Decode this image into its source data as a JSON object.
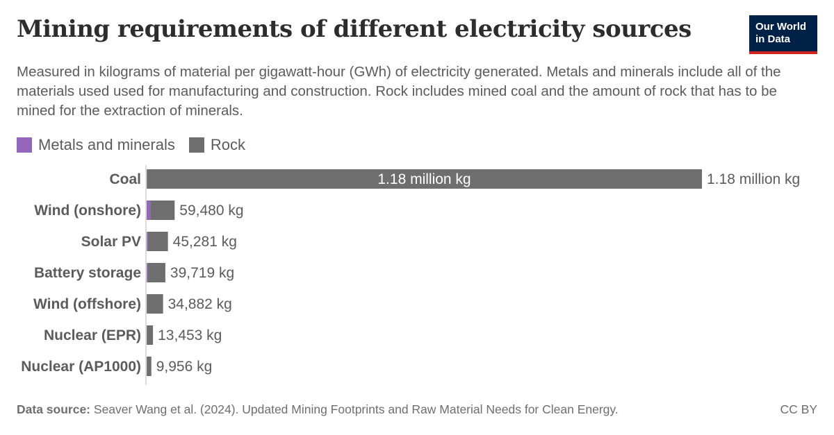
{
  "header": {
    "title": "Mining requirements of different electricity sources",
    "subtitle": "Measured in kilograms of material per gigawatt-hour (GWh) of electricity generated. Metals and minerals include all of the materials used used for manufacturing and construction. Rock includes mined coal and the amount of rock that has to be mined for the extraction of minerals.",
    "logo_line1": "Our World",
    "logo_line2": "in Data"
  },
  "colors": {
    "metals": "#9467bd",
    "rock": "#6e6e6e",
    "logo_bg": "#002147",
    "logo_accent": "#ce261e"
  },
  "chart_data": {
    "type": "bar",
    "orientation": "horizontal",
    "stacked": true,
    "legend_position": "top-left",
    "categories": [
      "Coal",
      "Wind (onshore)",
      "Solar PV",
      "Battery storage",
      "Wind (offshore)",
      "Nuclear (EPR)",
      "Nuclear (AP1000)"
    ],
    "series": [
      {
        "name": "Metals and minerals",
        "color": "#9467bd",
        "values": [
          1000,
          8000,
          2600,
          2500,
          1400,
          600,
          500
        ]
      },
      {
        "name": "Rock",
        "color": "#6e6e6e",
        "values": [
          1179000,
          51480,
          42681,
          37219,
          33482,
          12853,
          9456
        ]
      }
    ],
    "totals": [
      1180000,
      59480,
      45281,
      39719,
      34882,
      13453,
      9956
    ],
    "total_labels": [
      "1.18 million kg",
      "59,480 kg",
      "45,281 kg",
      "39,719 kg",
      "34,882 kg",
      "13,453 kg",
      "9,956 kg"
    ],
    "inside_labels": [
      "1.18 million kg",
      "",
      "",
      "",
      "",
      "",
      ""
    ],
    "xlim": [
      0,
      1180000
    ]
  },
  "footer": {
    "source_label": "Data source:",
    "source_text": "Seaver Wang et al. (2024). Updated Mining Footprints and Raw Material Needs for Clean Energy.",
    "license": "CC BY"
  }
}
